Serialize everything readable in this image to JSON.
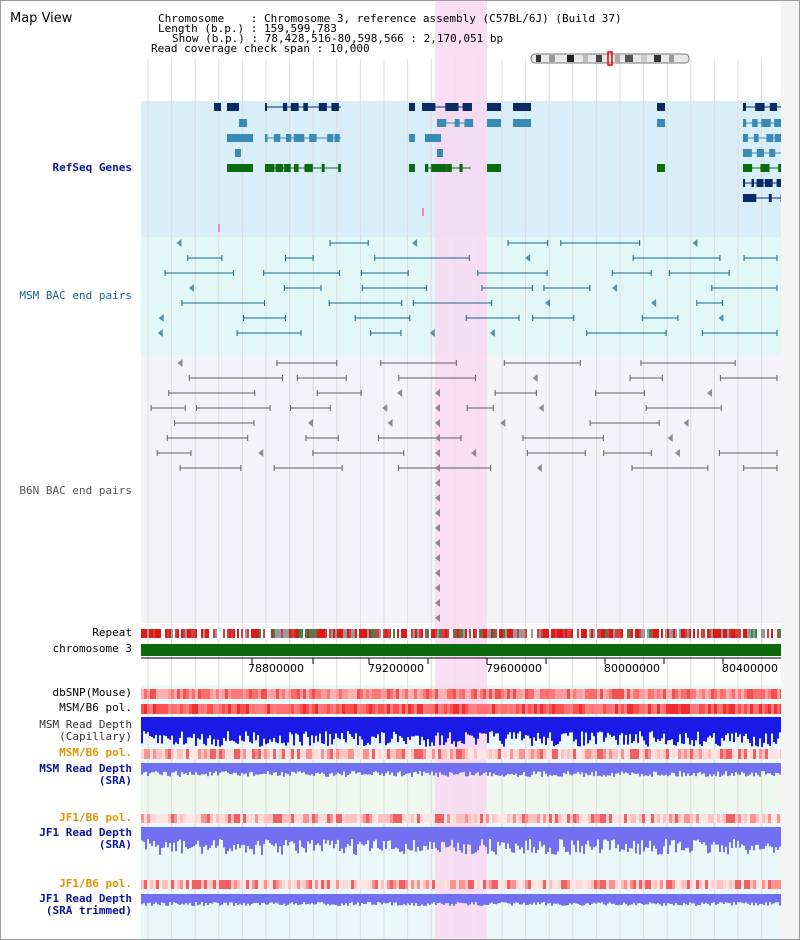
{
  "title": "Map View",
  "header": {
    "chromosome_key": "Chromosome",
    "chromosome_val": "Chromosome 3, reference assembly (C57BL/6J) (Build 37)",
    "length_key": "Length (b.p.)",
    "length_val": "159,599,783",
    "show_key": "Show (b.p.)",
    "show_val": "78,428,516-80,598,566 : 2,170,051 bp",
    "coverage_key": "Read coverage check span",
    "coverage_val": "10,000"
  },
  "tracks": {
    "refseq": "RefSeq Genes",
    "msm_bac": "MSM BAC end pairs",
    "b6n_bac": "B6N BAC end pairs",
    "repeat": "Repeat",
    "chromosome": "chromosome 3",
    "dbsnp": "dbSNP(Mouse)",
    "msm_b6_pol": "MSM/B6 pol.",
    "msm_read_depth_cap_1": "MSM Read Depth",
    "msm_read_depth_cap_2": "(Capillary)",
    "msm_b6_pol_2": "MSM/B6 pol.",
    "msm_read_depth_sra_1": "MSM Read Depth",
    "msm_read_depth_sra_2": "(SRA)",
    "jf1_b6_pol": "JF1/B6 pol.",
    "jf1_read_depth_1": "JF1 Read Depth",
    "jf1_read_depth_2": "(SRA)",
    "jf1_b6_pol_2": "JF1/B6 pol.",
    "jf1_read_depth_trim_1": "JF1 Read Depth",
    "jf1_read_depth_trim_2": "(SRA trimmed)"
  },
  "axis_ticks": [
    "78800000",
    "79200000",
    "79600000",
    "80000000",
    "80400000"
  ],
  "colors": {
    "refseq_bg": "#d8eef8",
    "msm_bg": "#e2f8f8",
    "b6n_bg": "#f4f4f8",
    "highlight": "#f8d8f2",
    "gene_dark": "#0a2a66",
    "gene_mid": "#3a8ab8",
    "gene_green": "#0a6a10",
    "msm_line": "#16668c",
    "b6n_line": "#606060",
    "chrom_bar": "#0c6a0c",
    "depth_blue": "#1a1ae6",
    "depth_light": "#7070f0"
  }
}
